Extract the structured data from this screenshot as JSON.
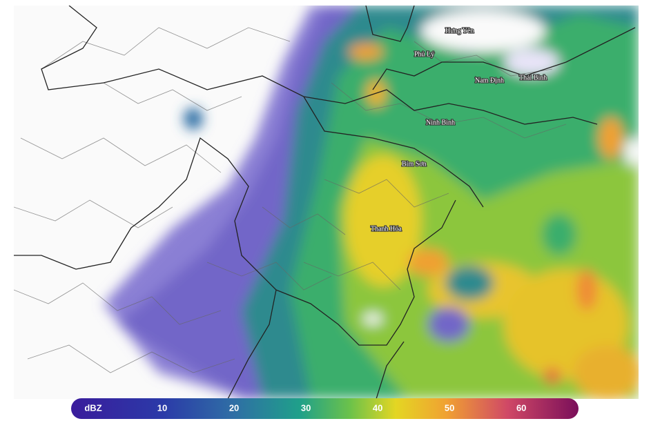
{
  "map": {
    "places": [
      {
        "label": "Hưng Yên"
      },
      {
        "label": "Phủ Lý"
      },
      {
        "label": "Nam Định"
      },
      {
        "label": "Thái Bình"
      },
      {
        "label": "Ninh Bình"
      },
      {
        "label": "Bỉm Sơn"
      },
      {
        "label": "Thanh Hóa"
      }
    ],
    "legend": {
      "unit": "dBZ",
      "ticks": [
        10,
        20,
        30,
        40,
        50,
        60
      ],
      "range": [
        0,
        67
      ]
    }
  }
}
